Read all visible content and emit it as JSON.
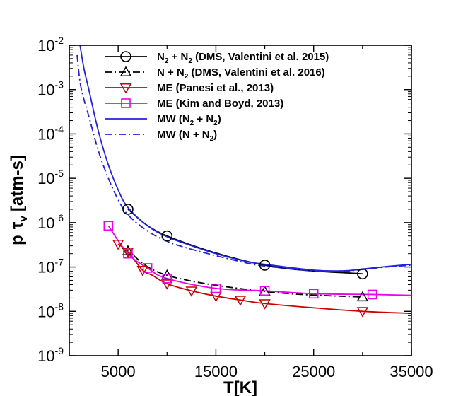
{
  "chart_data": {
    "type": "line",
    "title": "",
    "xlabel": "T[K]",
    "ylabel_main": "p",
    "ylabel_symbol": "τ",
    "ylabel_sub": "v",
    "ylabel_unit": "[atm-s]",
    "xlim": [
      0,
      35000
    ],
    "ylim": [
      1e-09,
      0.01
    ],
    "yscale": "log",
    "x_ticks": [
      5000,
      15000,
      25000,
      35000
    ],
    "x_tick_labels": [
      "5000",
      "15000",
      "25000",
      "35000"
    ],
    "y_ticks": [
      1e-09,
      1e-08,
      1e-07,
      1e-06,
      1e-05,
      0.0001,
      0.001,
      0.01
    ],
    "y_tick_base": "10",
    "y_tick_exponents": [
      "-9",
      "-8",
      "-7",
      "-6",
      "-5",
      "-4",
      "-3",
      "-2"
    ],
    "legend_position": "top-right",
    "series": [
      {
        "name": "N2 + N2 (DMS, Valentini et al. 2015)",
        "legend_parts": [
          "N",
          "2",
          " + N",
          "2",
          " (DMS, Valentini et al. 2015)"
        ],
        "color": "#000000",
        "line": "solid",
        "marker": "circle",
        "x": [
          6000,
          10000,
          20000,
          30000
        ],
        "y": [
          2e-06,
          5e-07,
          1.1e-07,
          7e-08
        ],
        "markers_x": [
          6000,
          10000,
          20000,
          30000
        ],
        "markers_y": [
          2e-06,
          5e-07,
          1.1e-07,
          7e-08
        ]
      },
      {
        "name": "N + N2 (DMS, Valentini et al. 2016)",
        "legend_parts": [
          "N + N",
          "2",
          " (DMS, Valentini et al. 2016)"
        ],
        "color": "#000000",
        "line": "dashdot",
        "marker": "triangle-up",
        "x": [
          5500,
          6000,
          10000,
          20000,
          30000
        ],
        "y": [
          2.5e-07,
          2.3e-07,
          6.5e-08,
          2.8e-08,
          2.1e-08
        ],
        "markers_x": [
          6000,
          10000,
          20000,
          30000
        ],
        "markers_y": [
          2.3e-07,
          6.5e-08,
          2.8e-08,
          2.1e-08
        ]
      },
      {
        "name": "ME (Panesi et al., 2013)",
        "legend_parts": [
          "ME (Panesi et al., 2013)"
        ],
        "color": "#cc0000",
        "line": "solid",
        "marker": "triangle-down",
        "x": [
          5000,
          6000,
          7500,
          8500,
          10000,
          12500,
          15000,
          17500,
          20000,
          25000,
          30000,
          35000
        ],
        "y": [
          3.3e-07,
          2.2e-07,
          8.5e-08,
          6.5e-08,
          4.2e-08,
          2.9e-08,
          2.2e-08,
          1.8e-08,
          1.5e-08,
          1.2e-08,
          1e-08,
          9e-09
        ],
        "markers_x": [
          5000,
          6000,
          7500,
          10000,
          12500,
          15000,
          17500,
          20000,
          30000
        ],
        "markers_y": [
          3.3e-07,
          2.2e-07,
          8.5e-08,
          4.2e-08,
          2.9e-08,
          2.2e-08,
          1.8e-08,
          1.5e-08,
          1e-08
        ]
      },
      {
        "name": "ME (Kim and Boyd, 2013)",
        "legend_parts": [
          "ME (Kim and Boyd, 2013)"
        ],
        "color": "#ee00ee",
        "line": "solid",
        "marker": "square",
        "x": [
          4000,
          6000,
          8000,
          10000,
          15000,
          20000,
          25000,
          31000,
          35000
        ],
        "y": [
          8.5e-07,
          2e-07,
          9.5e-08,
          5.5e-08,
          3.3e-08,
          2.9e-08,
          2.5e-08,
          2.4e-08,
          2.3e-08
        ],
        "markers_x": [
          4000,
          6000,
          8000,
          10000,
          15000,
          20000,
          25000,
          31000
        ],
        "markers_y": [
          8.5e-07,
          2e-07,
          9.5e-08,
          5.5e-08,
          3.3e-08,
          2.9e-08,
          2.5e-08,
          2.4e-08
        ]
      },
      {
        "name": "MW (N2 + N2)",
        "legend_parts": [
          "MW (N",
          "2",
          " + N",
          "2",
          ")"
        ],
        "color": "#2222dd",
        "line": "solid",
        "marker": "none",
        "x": [
          1100,
          1500,
          2000,
          3000,
          4000,
          5000,
          6000,
          8000,
          10000,
          12000,
          15000,
          18000,
          20000,
          25000,
          28000,
          30000,
          32000,
          35000
        ],
        "y": [
          0.01,
          0.003,
          0.001,
          0.00011,
          2e-05,
          5.5e-06,
          2.2e-06,
          8.5e-07,
          4.8e-07,
          3.3e-07,
          2e-07,
          1.35e-07,
          1.15e-07,
          8.5e-08,
          8.2e-08,
          9e-08,
          1e-07,
          1.15e-07
        ],
        "markers_x": [],
        "markers_y": []
      },
      {
        "name": "MW (N + N2)",
        "legend_parts": [
          "MW (N + N",
          "2",
          ")"
        ],
        "color": "#2222dd",
        "line": "dashdot",
        "marker": "none",
        "x": [
          800,
          1100,
          1500,
          2000,
          3000,
          4000,
          5000,
          6000,
          8000,
          10000,
          12000,
          15000,
          18000,
          20000,
          25000,
          28000,
          30000,
          32000,
          35000
        ],
        "y": [
          0.006,
          0.0015,
          0.0006,
          0.00025,
          4e-05,
          1e-05,
          3.3e-06,
          1.5e-06,
          6.5e-07,
          3.8e-07,
          2.7e-07,
          1.8e-07,
          1.25e-07,
          1.05e-07,
          8.2e-08,
          8e-08,
          8.8e-08,
          9.8e-08,
          1.1e-07
        ],
        "markers_x": [],
        "markers_y": []
      }
    ]
  }
}
